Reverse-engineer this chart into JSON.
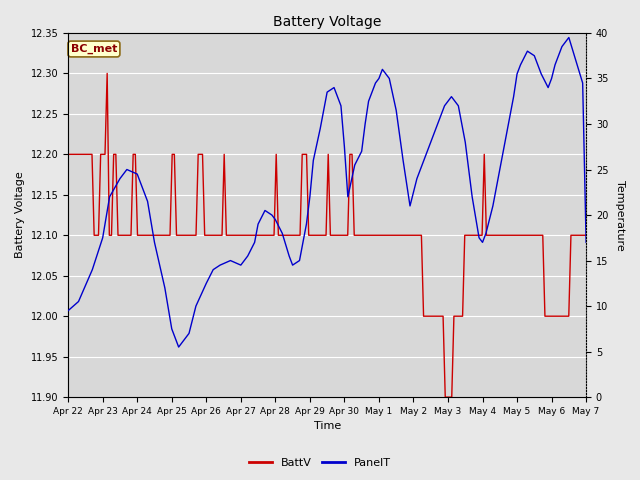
{
  "title": "Battery Voltage",
  "xlabel": "Time",
  "ylabel_left": "Battery Voltage",
  "ylabel_right": "Temperature",
  "ylim_left": [
    11.9,
    12.35
  ],
  "ylim_right": [
    0,
    40
  ],
  "yticks_left": [
    11.9,
    11.95,
    12.0,
    12.05,
    12.1,
    12.15,
    12.2,
    12.25,
    12.3,
    12.35
  ],
  "yticks_right": [
    0,
    5,
    10,
    15,
    20,
    25,
    30,
    35,
    40
  ],
  "xtick_labels": [
    "Apr 22",
    "Apr 23",
    "Apr 24",
    "Apr 25",
    "Apr 26",
    "Apr 27",
    "Apr 28",
    "Apr 29",
    "Apr 30",
    "May 1",
    "May 2",
    "May 3",
    "May 4",
    "May 5",
    "May 6",
    "May 7"
  ],
  "annotation_text": "BC_met",
  "color_red": "#CC0000",
  "color_blue": "#0000CC",
  "legend_labels": [
    "BattV",
    "PanelT"
  ],
  "bg_color": "#E8E8E8",
  "plot_bg_color": "#D8D8D8",
  "grid_color": "#FFFFFF",
  "battv_data": [
    12.2,
    12.2,
    12.2,
    12.2,
    12.2,
    12.2,
    12.2,
    12.2,
    12.2,
    12.2,
    12.2,
    12.2,
    12.1,
    12.1,
    12.1,
    12.2,
    12.2,
    12.2,
    12.3,
    12.1,
    12.1,
    12.2,
    12.2,
    12.1,
    12.1,
    12.1,
    12.1,
    12.1,
    12.1,
    12.1,
    12.2,
    12.2,
    12.1,
    12.1,
    12.1,
    12.1,
    12.1,
    12.1,
    12.1,
    12.1,
    12.1,
    12.1,
    12.1,
    12.1,
    12.1,
    12.1,
    12.1,
    12.1,
    12.2,
    12.2,
    12.1,
    12.1,
    12.1,
    12.1,
    12.1,
    12.1,
    12.1,
    12.1,
    12.1,
    12.1,
    12.2,
    12.2,
    12.2,
    12.1,
    12.1,
    12.1,
    12.1,
    12.1,
    12.1,
    12.1,
    12.1,
    12.1,
    12.2,
    12.1,
    12.1,
    12.1,
    12.1,
    12.1,
    12.1,
    12.1,
    12.1,
    12.1,
    12.1,
    12.1,
    12.1,
    12.1,
    12.1,
    12.1,
    12.1,
    12.1,
    12.1,
    12.1,
    12.1,
    12.1,
    12.1,
    12.1,
    12.2,
    12.1,
    12.1,
    12.1,
    12.1,
    12.1,
    12.1,
    12.1,
    12.1,
    12.1,
    12.1,
    12.1,
    12.2,
    12.2,
    12.2,
    12.1,
    12.1,
    12.1,
    12.1,
    12.1,
    12.1,
    12.1,
    12.1,
    12.1,
    12.2,
    12.1,
    12.1,
    12.1,
    12.1,
    12.1,
    12.1,
    12.1,
    12.1,
    12.1,
    12.2,
    12.2,
    12.1,
    12.1,
    12.1,
    12.1,
    12.1,
    12.1,
    12.1,
    12.1,
    12.1,
    12.1,
    12.1,
    12.1,
    12.1,
    12.1,
    12.1,
    12.1,
    12.1,
    12.1,
    12.1,
    12.1,
    12.1,
    12.1,
    12.1,
    12.1,
    12.1,
    12.1,
    12.1,
    12.1,
    12.1,
    12.1,
    12.1,
    12.1,
    12.0,
    12.0,
    12.0,
    12.0,
    12.0,
    12.0,
    12.0,
    12.0,
    12.0,
    12.0,
    11.9,
    11.9,
    11.9,
    11.9,
    12.0,
    12.0,
    12.0,
    12.0,
    12.0,
    12.1,
    12.1,
    12.1,
    12.1,
    12.1,
    12.1,
    12.1,
    12.1,
    12.1,
    12.2,
    12.1,
    12.1,
    12.1,
    12.1,
    12.1,
    12.1,
    12.1,
    12.1,
    12.1,
    12.1,
    12.1,
    12.1,
    12.1,
    12.1,
    12.1,
    12.1,
    12.1,
    12.1,
    12.1,
    12.1,
    12.1,
    12.1,
    12.1,
    12.1,
    12.1,
    12.1,
    12.1,
    12.0,
    12.0,
    12.0,
    12.0,
    12.0,
    12.0,
    12.0,
    12.0,
    12.0,
    12.0,
    12.0,
    12.0,
    12.1,
    12.1,
    12.1,
    12.1,
    12.1,
    12.1,
    12.1,
    12.1
  ],
  "panelt_data_x": [
    0,
    0.3,
    0.7,
    1.0,
    1.2,
    1.5,
    1.7,
    2.0,
    2.3,
    2.5,
    2.8,
    3.0,
    3.2,
    3.5,
    3.7,
    4.0,
    4.2,
    4.4,
    4.7,
    5.0,
    5.2,
    5.4,
    5.5,
    5.7,
    5.9,
    6.0,
    6.2,
    6.4,
    6.5,
    6.7,
    6.9,
    7.0,
    7.1,
    7.3,
    7.5,
    7.7,
    7.9,
    8.0,
    8.1,
    8.3,
    8.5,
    8.6,
    8.7,
    8.9,
    9.0,
    9.1,
    9.3,
    9.5,
    9.7,
    9.9,
    10.0,
    10.1,
    10.3,
    10.5,
    10.7,
    10.9,
    11.0,
    11.1,
    11.3,
    11.5,
    11.7,
    11.9,
    12.0,
    12.1,
    12.3,
    12.5,
    12.7,
    12.9,
    13.0,
    13.1,
    13.3,
    13.5,
    13.7,
    13.9,
    14.0,
    14.1,
    14.3,
    14.5,
    14.7,
    14.9,
    15.0
  ],
  "panelt_data_y": [
    9.5,
    10.5,
    14.0,
    17.5,
    22.0,
    24.0,
    25.0,
    24.5,
    21.5,
    17.0,
    12.0,
    7.5,
    5.5,
    7.0,
    10.0,
    12.5,
    14.0,
    14.5,
    15.0,
    14.5,
    15.5,
    17.0,
    19.0,
    20.5,
    20.0,
    19.5,
    18.0,
    15.5,
    14.5,
    15.0,
    19.0,
    22.0,
    26.0,
    29.5,
    33.5,
    34.0,
    32.0,
    27.5,
    22.0,
    25.5,
    27.0,
    30.0,
    32.5,
    34.5,
    35.0,
    36.0,
    35.0,
    31.5,
    26.0,
    21.0,
    22.5,
    24.0,
    26.0,
    28.0,
    30.0,
    32.0,
    32.5,
    33.0,
    32.0,
    28.0,
    22.0,
    17.5,
    17.0,
    18.0,
    21.0,
    25.0,
    29.0,
    33.0,
    35.5,
    36.5,
    38.0,
    37.5,
    35.5,
    34.0,
    35.0,
    36.5,
    38.5,
    39.5,
    37.0,
    34.5,
    17.0
  ]
}
